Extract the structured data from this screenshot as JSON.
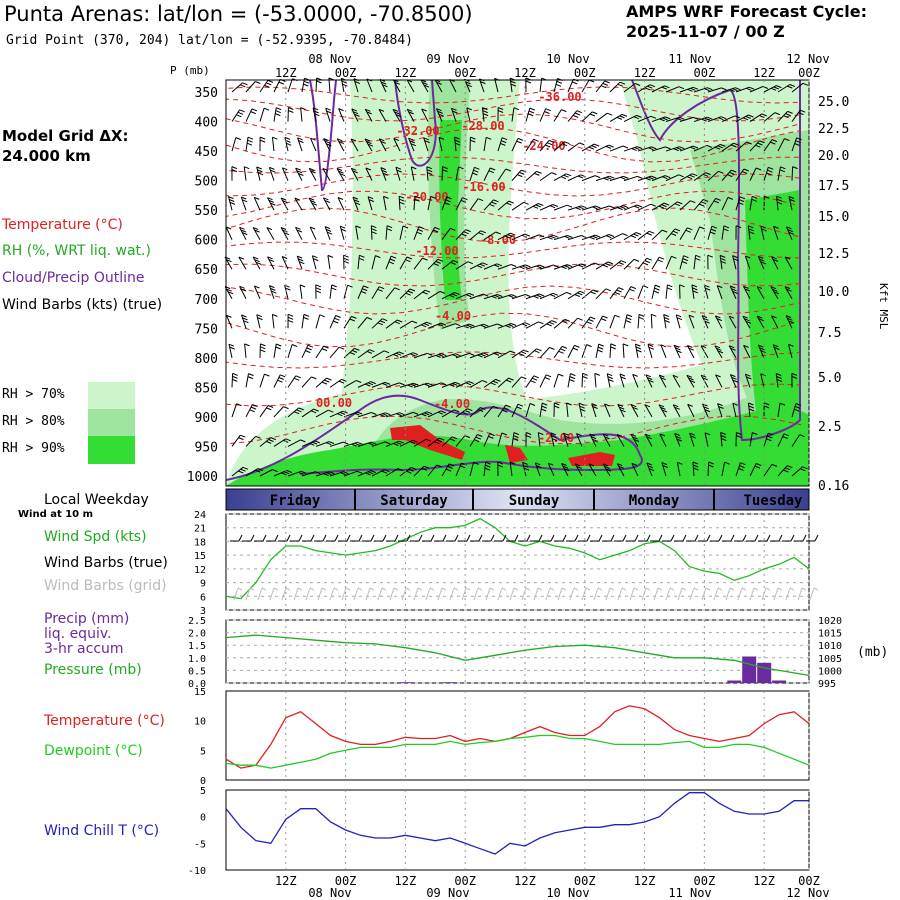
{
  "header": {
    "title": "Punta Arenas:  lat/lon = (-53.0000, -70.8500)",
    "grid_point": "Grid Point (370, 204) lat/lon = (-52.9395, -70.8484)",
    "cycle_line1": "AMPS WRF Forecast Cycle:",
    "cycle_line2": "2025-11-07 / 00  Z"
  },
  "sidebar": {
    "model_grid_line1": "Model Grid ΔX:",
    "model_grid_line2": " 24.000 km",
    "legend": {
      "temperature": "Temperature (°C)",
      "rh": "RH (%, WRT liq. wat.)",
      "cloud": "Cloud/Precip Outline",
      "wind_barbs": "Wind Barbs (kts) (true)",
      "rh70": "RH > 70%",
      "rh80": "RH > 80%",
      "rh90": "RH > 90%"
    },
    "local_weekday": "Local Weekday",
    "wind_at_10m": "Wind at 10 m",
    "wind_spd": "Wind Spd (kts)",
    "wind_barbs_true": "Wind Barbs (true)",
    "wind_barbs_grid": "Wind Barbs (grid)",
    "precip_l1": "Precip (mm)",
    "precip_l2": "liq. equiv.",
    "precip_l3": "3-hr accum",
    "pressure": "Pressure (mb)",
    "temperature": "Temperature (°C)",
    "dewpoint": "Dewpoint (°C)",
    "wind_chill": "Wind Chill T (°C)"
  },
  "colors": {
    "temperature": "#e02020",
    "rh70": "#ccf5cc",
    "rh80": "#9ee39e",
    "rh90": "#33dd33",
    "cloud": "#6a2aa0",
    "wind_speed": "#22bb22",
    "pressure": "#22aa22",
    "precip": "#6a2aa0",
    "dewpoint": "#22cc22",
    "wind_chill": "#2222bb",
    "barb_grid": "#bbbbbb"
  },
  "chart_data": [
    {
      "type": "heatmap",
      "name": "cross-section",
      "pressure_axis_label": "P (mb)",
      "pressure_levels": [
        "350",
        "400",
        "450",
        "500",
        "550",
        "600",
        "650",
        "700",
        "750",
        "800",
        "850",
        "900",
        "950",
        "1000"
      ],
      "height_axis_label": "Kft MSL",
      "height_levels": [
        "25.0",
        "22.5",
        "20.0",
        "17.5",
        "15.0",
        "12.5",
        "10.0",
        "7.5",
        "5.0",
        "2.5",
        "0.16"
      ],
      "time_ticks_top": [
        "12Z",
        "00Z",
        "12Z",
        "00Z",
        "12Z",
        "00Z",
        "12Z",
        "00Z",
        "12Z",
        "00Z"
      ],
      "date_labels_top": [
        "08 Nov",
        "09 Nov",
        "10 Nov",
        "11 Nov",
        "12 Nov"
      ],
      "temperature_labels": [
        "-36.00",
        "-32.00",
        "-28.00",
        "-24.00",
        "-20.00",
        "-16.00",
        "-12.00",
        "-8.00",
        "-4.00",
        "-4.00",
        "00.00",
        "-2.00"
      ]
    },
    {
      "type": "table",
      "name": "weekday-bar",
      "days": [
        "Friday",
        "Saturday",
        "Sunday",
        "Monday",
        "Tuesday"
      ]
    },
    {
      "type": "line",
      "name": "wind-speed",
      "ylabel": "Wind Spd (kts)",
      "ylim": [
        3,
        24
      ],
      "yticks": [
        "24",
        "21",
        "18",
        "15",
        "12",
        "9",
        "6",
        "3"
      ],
      "x_hours": [
        0,
        3,
        6,
        9,
        12,
        15,
        18,
        21,
        24,
        27,
        30,
        33,
        36,
        39,
        42,
        45,
        48,
        51,
        54,
        57,
        60,
        63,
        66,
        69,
        72,
        75,
        78,
        81,
        84,
        87,
        90,
        93,
        96,
        99,
        102,
        105,
        108,
        111,
        114,
        117
      ],
      "values": [
        6,
        5.5,
        9,
        14,
        17,
        17,
        16,
        15.5,
        15,
        15.5,
        16,
        17,
        18.5,
        20,
        21,
        21,
        21.5,
        23,
        21,
        18,
        17,
        18,
        17,
        16.5,
        15.5,
        14,
        15,
        16,
        17.5,
        18,
        16,
        12.5,
        11.5,
        11,
        9.5,
        10.5,
        12,
        13,
        14.5,
        12
      ]
    },
    {
      "type": "bar",
      "name": "precip",
      "ylabel": "Precip (mm)",
      "ylim": [
        0,
        2.5
      ],
      "yticks": [
        "2.5",
        "2.0",
        "1.5",
        "1.0",
        "0.5",
        "0.0"
      ],
      "x_hours": [
        36,
        45,
        102,
        105,
        108,
        111
      ],
      "values": [
        0.03,
        0.03,
        0.1,
        1.05,
        0.8,
        0.1
      ]
    },
    {
      "type": "line",
      "name": "pressure",
      "ylabel": "Pressure (mb)",
      "y2label": "(mb)",
      "ylim": [
        995,
        1020
      ],
      "yticks": [
        "1020",
        "1015",
        "1010",
        "1005",
        "1000",
        "995"
      ],
      "x_hours": [
        0,
        6,
        12,
        18,
        24,
        30,
        36,
        42,
        48,
        54,
        60,
        66,
        72,
        78,
        84,
        90,
        96,
        102,
        108,
        114,
        117
      ],
      "values": [
        1013,
        1014,
        1013,
        1012,
        1011,
        1010.5,
        1009,
        1007,
        1004,
        1006,
        1008,
        1009.5,
        1010,
        1009,
        1007,
        1005,
        1005,
        1004,
        1001,
        999,
        998
      ]
    },
    {
      "type": "line",
      "name": "temperature-dewpoint",
      "ylim": [
        0,
        15
      ],
      "yticks": [
        "15",
        "10",
        "5",
        "0"
      ],
      "x_hours": [
        0,
        3,
        6,
        9,
        12,
        15,
        18,
        21,
        24,
        27,
        30,
        33,
        36,
        39,
        42,
        45,
        48,
        51,
        54,
        57,
        60,
        63,
        66,
        69,
        72,
        75,
        78,
        81,
        84,
        87,
        90,
        93,
        96,
        99,
        102,
        105,
        108,
        111,
        114,
        117
      ],
      "series": [
        {
          "name": "Temperature",
          "values": [
            3.5,
            2,
            2.5,
            6,
            10.5,
            11.5,
            9.5,
            7.5,
            6.5,
            6,
            6,
            6.5,
            7.2,
            7,
            7,
            7.5,
            6.5,
            7,
            6.5,
            7,
            8,
            9,
            8,
            7.5,
            7.5,
            9,
            11.5,
            12.5,
            12,
            10.5,
            8.5,
            7.5,
            7,
            6.5,
            7,
            7.5,
            9.5,
            11,
            11.5,
            9.5
          ]
        },
        {
          "name": "Dewpoint",
          "values": [
            2.8,
            2.5,
            2.5,
            2,
            2.5,
            3,
            3.5,
            4.5,
            5,
            5.5,
            5.5,
            5.5,
            6,
            6,
            6,
            6.5,
            6,
            6.3,
            6.5,
            7,
            7.2,
            7.5,
            7.5,
            7,
            7,
            6.5,
            6,
            6,
            6,
            6,
            6.3,
            6.5,
            5.5,
            5.5,
            6,
            6,
            5.5,
            4.5,
            3.5,
            2.5
          ]
        }
      ]
    },
    {
      "type": "line",
      "name": "wind-chill",
      "ylabel": "Wind Chill T (°C)",
      "ylim": [
        -10,
        5
      ],
      "yticks": [
        "5",
        "0",
        "-5",
        "-10"
      ],
      "x_hours": [
        0,
        3,
        6,
        9,
        12,
        15,
        18,
        21,
        24,
        27,
        30,
        33,
        36,
        39,
        42,
        45,
        48,
        51,
        54,
        57,
        60,
        63,
        66,
        69,
        72,
        75,
        78,
        81,
        84,
        87,
        90,
        93,
        96,
        99,
        102,
        105,
        108,
        111,
        114,
        117
      ],
      "values": [
        1.5,
        -2,
        -4.5,
        -5,
        -0.5,
        1.5,
        1.5,
        -1,
        -2.5,
        -3.5,
        -4,
        -4,
        -3.5,
        -4,
        -4.5,
        -4,
        -5,
        -6,
        -7,
        -5,
        -5.5,
        -4,
        -3,
        -2.5,
        -2,
        -2,
        -1.5,
        -1.5,
        -1,
        0,
        2.5,
        4.5,
        4.5,
        2.5,
        1,
        0.5,
        0.5,
        1,
        3,
        3
      ]
    }
  ]
}
